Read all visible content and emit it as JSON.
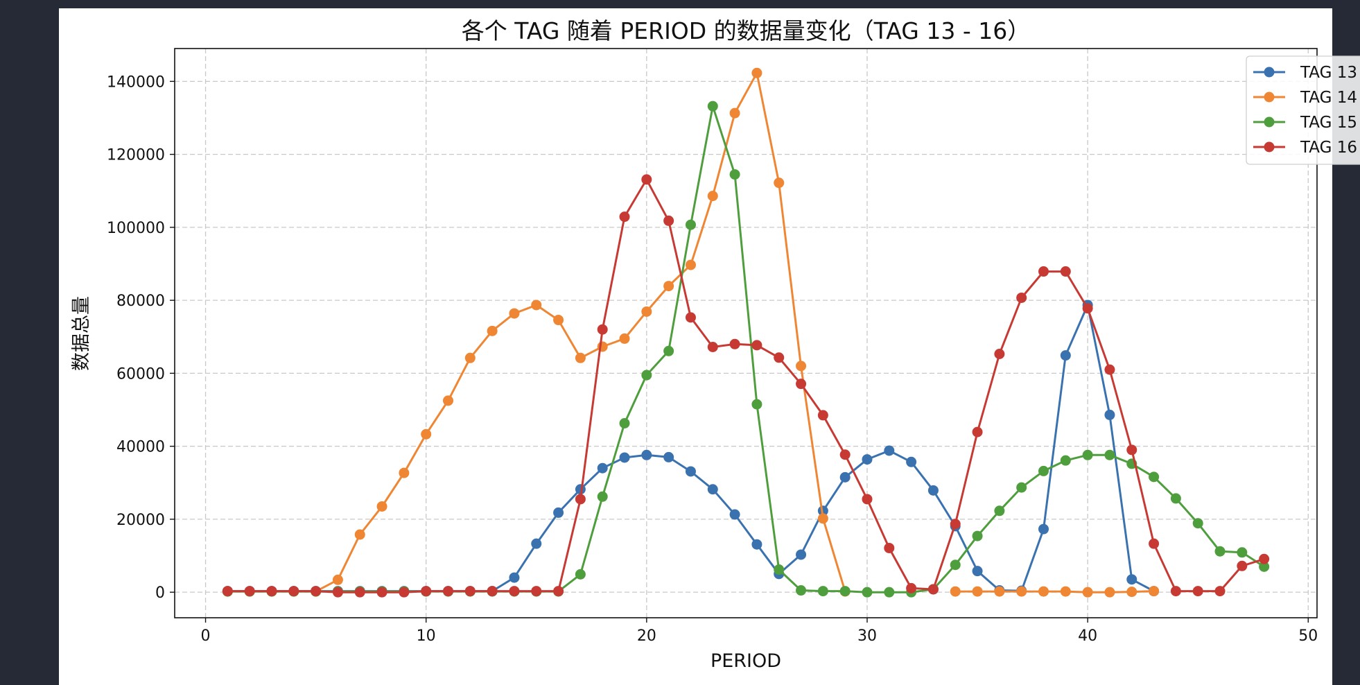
{
  "chart_data": {
    "type": "line",
    "title": "各个 TAG 随着 PERIOD 的数据量变化（TAG 13 - 16）",
    "xlabel": "PERIOD",
    "ylabel": "数据总量",
    "xlim": [
      -1.4,
      50.4
    ],
    "ylim": [
      -7000,
      149000
    ],
    "xticks": [
      0,
      10,
      20,
      30,
      40,
      50
    ],
    "yticks": [
      0,
      20000,
      40000,
      60000,
      80000,
      100000,
      120000,
      140000
    ],
    "grid": true,
    "legend_position": "top-right",
    "x": [
      1,
      2,
      3,
      4,
      5,
      6,
      7,
      8,
      9,
      10,
      11,
      12,
      13,
      14,
      15,
      16,
      17,
      18,
      19,
      20,
      21,
      22,
      23,
      24,
      25,
      26,
      27,
      28,
      29,
      30,
      31,
      32,
      33,
      34,
      35,
      36,
      37,
      38,
      39,
      40,
      41,
      42,
      43,
      44,
      45,
      46,
      47,
      48
    ],
    "series": [
      {
        "name": "TAG 13",
        "color": "#3a72b0",
        "values": [
          300,
          300,
          300,
          300,
          300,
          300,
          300,
          300,
          300,
          300,
          300,
          300,
          300,
          4000,
          13300,
          21800,
          28200,
          34000,
          36900,
          37600,
          37000,
          33100,
          28200,
          21300,
          13100,
          5000,
          10300,
          22300,
          31500,
          36400,
          38800,
          35700,
          27900,
          18100,
          5800,
          500,
          400,
          17300,
          64900,
          78700,
          48600,
          3500,
          300,
          null,
          null,
          null,
          null,
          null
        ]
      },
      {
        "name": "TAG 14",
        "color": "#ef8634",
        "values": [
          200,
          200,
          200,
          200,
          200,
          3400,
          15800,
          23500,
          32700,
          43300,
          52500,
          64200,
          71600,
          76400,
          78700,
          74600,
          64200,
          67300,
          69500,
          76900,
          83900,
          89700,
          108600,
          131300,
          142300,
          112200,
          62000,
          20200,
          200,
          null,
          null,
          null,
          null,
          200,
          200,
          200,
          200,
          200,
          200,
          0,
          0,
          100,
          300,
          null,
          null,
          null,
          null,
          null
        ]
      },
      {
        "name": "TAG 15",
        "color": "#4f9e3d",
        "values": [
          200,
          200,
          200,
          200,
          200,
          200,
          200,
          200,
          200,
          200,
          200,
          200,
          200,
          200,
          200,
          200,
          4900,
          26200,
          46300,
          59500,
          66100,
          100700,
          133200,
          114500,
          51500,
          6200,
          500,
          300,
          300,
          0,
          0,
          0,
          800,
          7500,
          15400,
          22300,
          28700,
          33200,
          36100,
          37600,
          37600,
          35200,
          31600,
          25700,
          18900,
          11200,
          10900,
          7000
        ]
      },
      {
        "name": "TAG 16",
        "color": "#c73a34",
        "values": [
          300,
          300,
          300,
          300,
          300,
          0,
          0,
          0,
          0,
          300,
          300,
          300,
          300,
          300,
          300,
          300,
          25500,
          72000,
          102900,
          113100,
          101800,
          75300,
          67200,
          68000,
          67700,
          64300,
          57100,
          48500,
          37700,
          25500,
          12100,
          1100,
          800,
          18700,
          43900,
          65300,
          80700,
          87900,
          87900,
          77800,
          61000,
          39000,
          13300,
          300,
          300,
          300,
          7200,
          9100
        ]
      }
    ]
  }
}
